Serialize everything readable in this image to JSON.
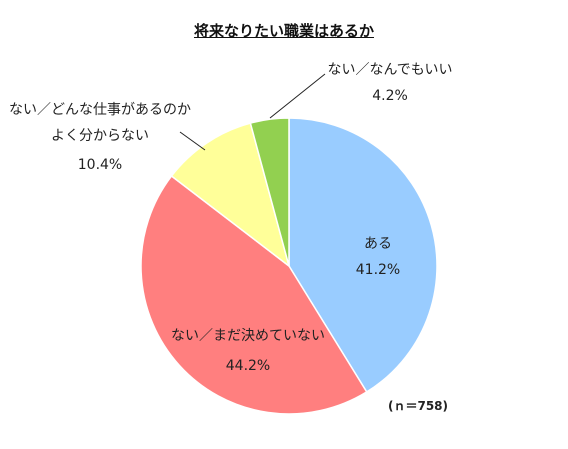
{
  "chart_data": {
    "type": "pie",
    "title": "将来なりたい職業はあるか",
    "note": "(ｎ＝758)",
    "categories": [
      "ある",
      "ない／まだ決めていない",
      "ない／どんな仕事があるのか\nよく分からない",
      "ない／なんでもいい"
    ],
    "values": [
      41.2,
      44.2,
      10.4,
      4.2
    ],
    "value_labels": [
      "41.2%",
      "44.2%",
      "10.4%",
      "4.2%"
    ],
    "colors": [
      "#99ccff",
      "#ff7f7f",
      "#ffff99",
      "#92d050"
    ]
  }
}
